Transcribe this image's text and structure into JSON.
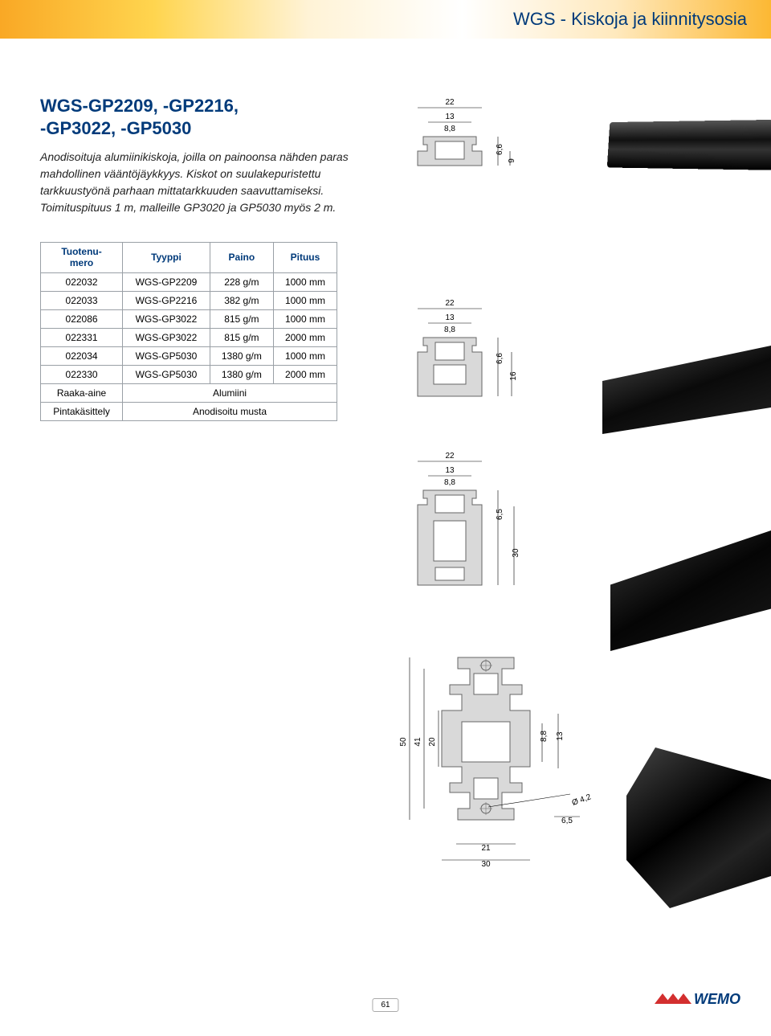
{
  "header": {
    "title": "WGS - Kiskoja ja kiinnitysosia"
  },
  "product": {
    "title": "WGS-GP2209, -GP2216,\n-GP3022, -GP5030",
    "description": "Anodisoituja alumiinikiskoja, joilla on painoonsa nähden paras mahdollinen vääntöjäykkyys. Kiskot on suulakepuristettu tarkkuustyönä parhaan mittatarkkuuden saavuttamiseksi. Toimituspituus 1 m, malleille GP3020 ja GP5030 myös 2 m."
  },
  "table": {
    "headers": [
      "Tuotenu-\nmero",
      "Tyyppi",
      "Paino",
      "Pituus"
    ],
    "rows": [
      [
        "022032",
        "WGS-GP2209",
        "228 g/m",
        "1000 mm"
      ],
      [
        "022033",
        "WGS-GP2216",
        "382 g/m",
        "1000 mm"
      ],
      [
        "022086",
        "WGS-GP3022",
        "815 g/m",
        "1000 mm"
      ],
      [
        "022331",
        "WGS-GP3022",
        "815 g/m",
        "2000 mm"
      ],
      [
        "022034",
        "WGS-GP5030",
        "1380 g/m",
        "1000 mm"
      ],
      [
        "022330",
        "WGS-GP5030",
        "1380 g/m",
        "2000 mm"
      ]
    ],
    "footer_rows": [
      [
        "Raaka-aine",
        "Alumiini"
      ],
      [
        "Pintakäsittely",
        "Anodisoitu musta"
      ]
    ]
  },
  "diagrams": {
    "d1": {
      "w": "22",
      "mid": "13",
      "inner": "8,8",
      "h_top": "6,6",
      "h": "9"
    },
    "d2": {
      "w": "22",
      "mid": "13",
      "inner": "8,8",
      "h_top": "6,6",
      "h": "16"
    },
    "d3": {
      "w": "22",
      "mid": "13",
      "inner": "8,8",
      "h_top": "6,5",
      "h": "30"
    },
    "d4": {
      "h1": "50",
      "h2": "41",
      "h3": "20",
      "w_mid": "8,8",
      "w_top": "13",
      "phi": "Ø 4,2",
      "w_bot": "6,5",
      "w1": "21",
      "w2": "30"
    }
  },
  "page": {
    "number": "61"
  },
  "logo": {
    "text": "WEMO"
  },
  "colors": {
    "brand_blue": "#003a7a",
    "brand_red": "#d32f2f",
    "profile_gray": "#d0d0d0"
  }
}
